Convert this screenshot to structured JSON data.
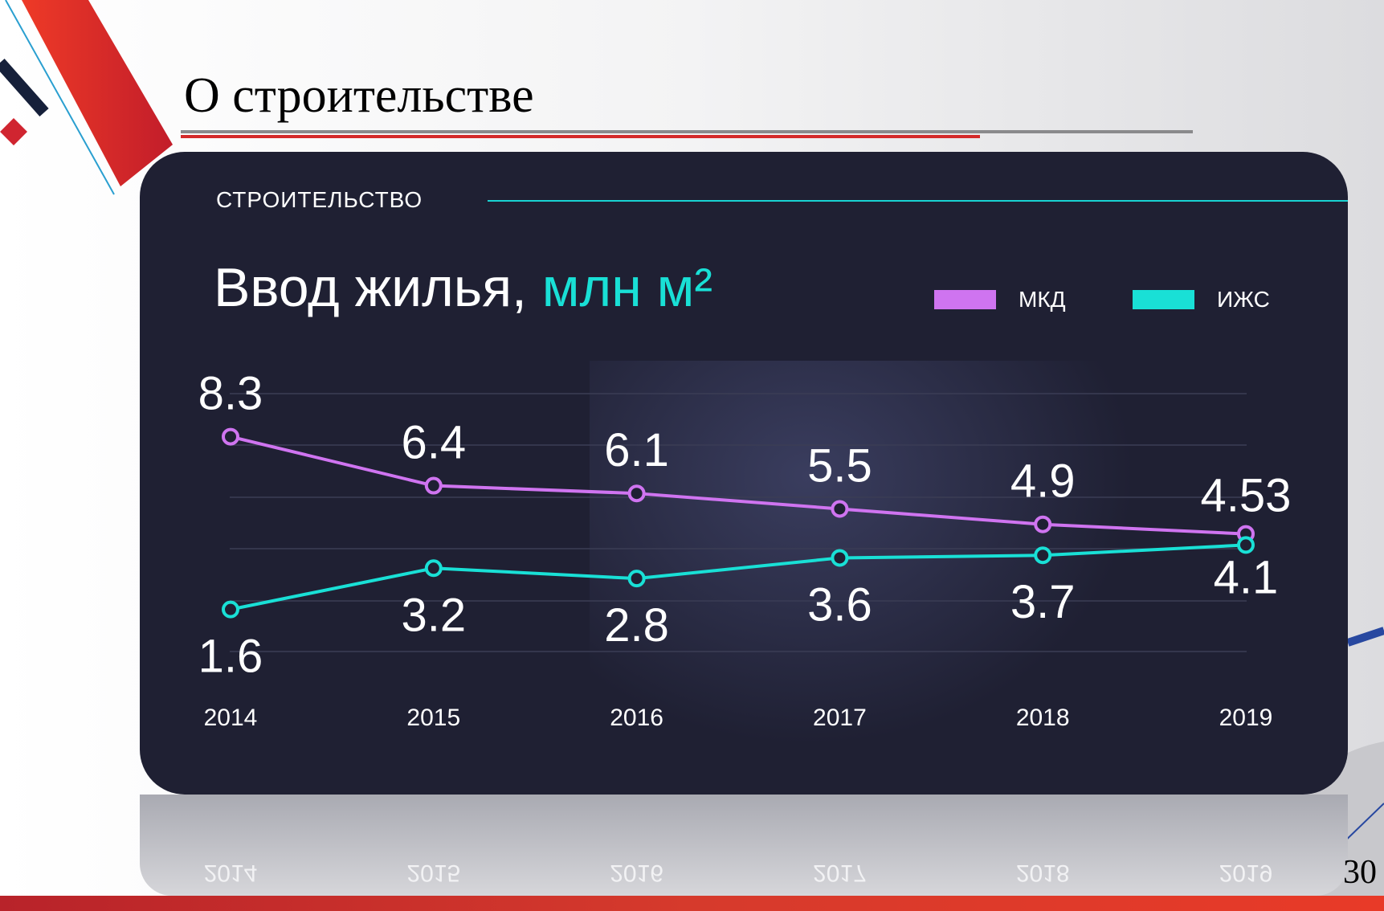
{
  "slide": {
    "title": "О строительстве",
    "page_number": "30"
  },
  "card": {
    "section": "СТРОИТЕЛЬСТВО",
    "heading_main": "Ввод жилья, ",
    "heading_unit": "млн м²"
  },
  "colors": {
    "mkd": "#cf74f0",
    "izhs": "#19e0d6",
    "card_bg": "#1f2033",
    "accent_red": "#d9292b"
  },
  "chart_data": {
    "type": "line",
    "title": "Ввод жилья, млн м²",
    "categories": [
      "2014",
      "2015",
      "2016",
      "2017",
      "2018",
      "2019"
    ],
    "series": [
      {
        "name": "МКД",
        "values": [
          8.3,
          6.4,
          6.1,
          5.5,
          4.9,
          4.53
        ],
        "labels": [
          "8.3",
          "6.4",
          "6.1",
          "5.5",
          "4.9",
          "4.53"
        ]
      },
      {
        "name": "ИЖС",
        "values": [
          1.6,
          3.2,
          2.8,
          3.6,
          3.7,
          4.1
        ],
        "labels": [
          "1.6",
          "3.2",
          "2.8",
          "3.6",
          "3.7",
          "4.1"
        ]
      }
    ],
    "legend": "top-right",
    "grid": true
  }
}
